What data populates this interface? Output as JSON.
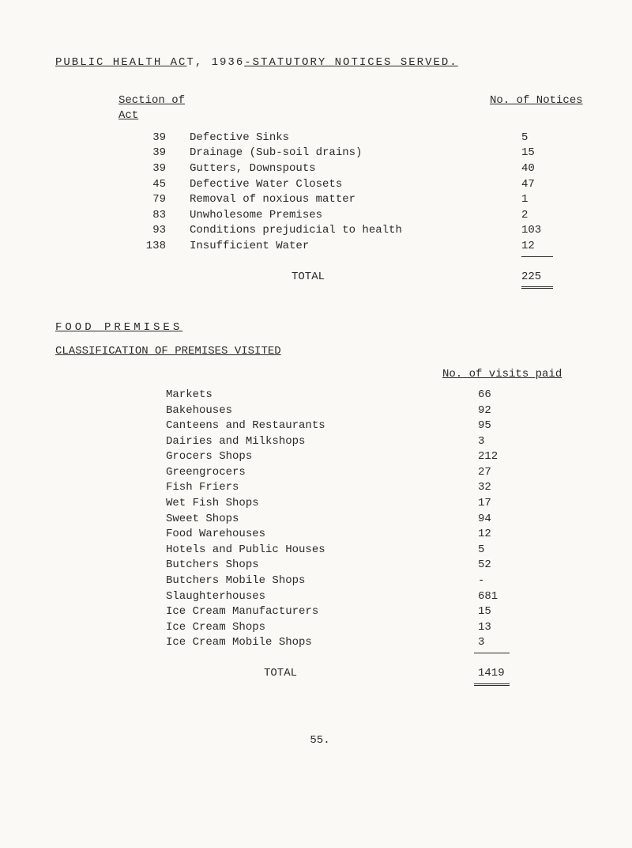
{
  "title": {
    "left": "PUBLIC HEALTH AC",
    "mid": "T, 1936",
    "right": "-STATUTORY NOTICES SERVED."
  },
  "notices": {
    "header_section": "Section of Act",
    "header_count": "No. of Notices",
    "rows": [
      {
        "section": "39",
        "desc": "Defective Sinks",
        "count": "5"
      },
      {
        "section": "39",
        "desc": "Drainage (Sub-soil drains)",
        "count": "15"
      },
      {
        "section": "39",
        "desc": "Gutters, Downspouts",
        "count": "40"
      },
      {
        "section": "45",
        "desc": "Defective Water Closets",
        "count": "47"
      },
      {
        "section": "79",
        "desc": "Removal of noxious matter",
        "count": "1"
      },
      {
        "section": "83",
        "desc": "Unwholesome Premises",
        "count": "2"
      },
      {
        "section": "93",
        "desc": "Conditions prejudicial to health",
        "count": "103"
      },
      {
        "section": "138",
        "desc": "Insufficient Water",
        "count": "12"
      }
    ],
    "total_label": "TOTAL",
    "total_value": "225"
  },
  "food": {
    "heading": "FOOD PREMISES",
    "sub_heading": "CLASSIFICATION OF PREMISES VISITED",
    "col_label": "No. of visits paid",
    "rows": [
      {
        "desc": "Markets",
        "count": "66"
      },
      {
        "desc": "Bakehouses",
        "count": "92"
      },
      {
        "desc": "Canteens and Restaurants",
        "count": "95"
      },
      {
        "desc": "Dairies and Milkshops",
        "count": "3"
      },
      {
        "desc": "Grocers Shops",
        "count": "212"
      },
      {
        "desc": "Greengrocers",
        "count": "27"
      },
      {
        "desc": "Fish Friers",
        "count": "32"
      },
      {
        "desc": "Wet Fish Shops",
        "count": "17"
      },
      {
        "desc": "Sweet Shops",
        "count": "94"
      },
      {
        "desc": "Food Warehouses",
        "count": "12"
      },
      {
        "desc": "Hotels and Public Houses",
        "count": "5"
      },
      {
        "desc": "Butchers Shops",
        "count": "52"
      },
      {
        "desc": "Butchers Mobile Shops",
        "count": "-"
      },
      {
        "desc": "Slaughterhouses",
        "count": "681"
      },
      {
        "desc": "Ice Cream Manufacturers",
        "count": "15"
      },
      {
        "desc": "Ice Cream Shops",
        "count": "13"
      },
      {
        "desc": "Ice Cream Mobile Shops",
        "count": "3"
      }
    ],
    "total_label": "TOTAL",
    "total_value": "1419"
  },
  "page_number": "55."
}
